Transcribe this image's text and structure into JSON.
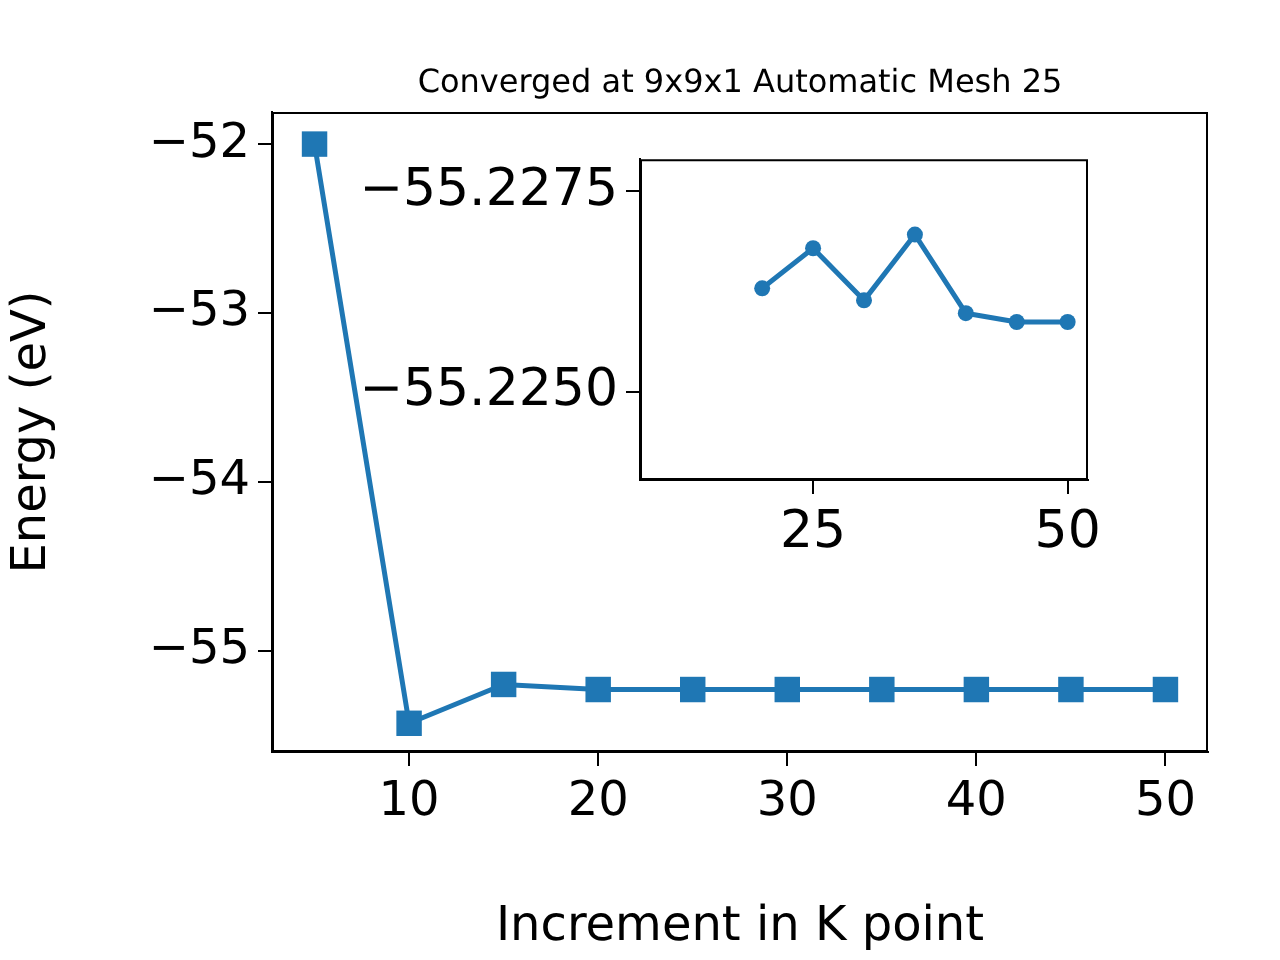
{
  "chart_data": [
    {
      "type": "line",
      "title": "Converged at 9x9x1 Automatic Mesh 25",
      "xlabel": "Increment in K point",
      "ylabel": "Energy (eV)",
      "x": [
        5,
        10,
        15,
        20,
        25,
        30,
        35,
        40,
        45,
        50
      ],
      "series": [
        {
          "color": "#1f77b4",
          "values": [
            -52.0,
            -55.43,
            -55.2,
            -55.23,
            -55.23,
            -55.23,
            -55.23,
            -55.23,
            -55.23,
            -55.23
          ]
        }
      ],
      "xlim": [
        2.75,
        52.25
      ],
      "ylim": [
        -55.6,
        -51.81
      ],
      "xticks": [
        10,
        20,
        30,
        40,
        50
      ],
      "yticks": [
        {
          "value": -55,
          "label": "−55"
        },
        {
          "value": -54,
          "label": "−54"
        },
        {
          "value": -53,
          "label": "−53"
        },
        {
          "value": -52,
          "label": "−52"
        }
      ],
      "grid": false,
      "legend": false,
      "marker": "square",
      "line_style": "solid"
    },
    {
      "type": "line",
      "x": [
        20,
        25,
        30,
        35,
        40,
        45,
        50
      ],
      "series": [
        {
          "color": "#1f77b4",
          "values": [
            -55.22629,
            -55.22679,
            -55.22614,
            -55.22696,
            -55.22598,
            -55.22587,
            -55.22587
          ]
        }
      ],
      "xlim": [
        8,
        52
      ],
      "ylim": [
        -55.2239,
        -55.2279
      ],
      "xticks": [
        25,
        50
      ],
      "yticks": [
        {
          "value": -55.2275,
          "label": "−55.2275"
        },
        {
          "value": -55.225,
          "label": "−55.2250"
        }
      ],
      "grid": false,
      "legend": false,
      "marker": "circle",
      "line_style": "solid"
    }
  ]
}
